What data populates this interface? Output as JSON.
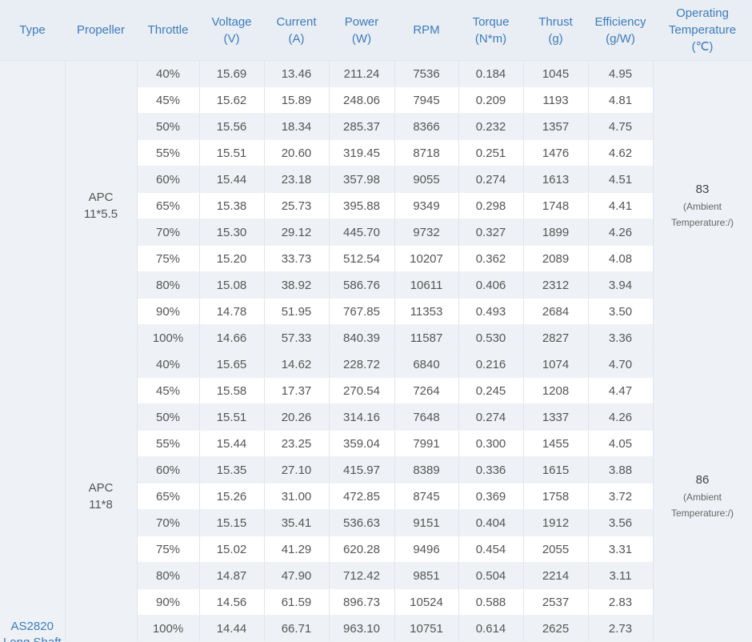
{
  "headers": {
    "type": "Type",
    "propeller": "Propeller",
    "throttle": "Throttle",
    "voltage": [
      "Voltage",
      "(V)"
    ],
    "current": [
      "Current",
      "(A)"
    ],
    "power": [
      "Power",
      "(W)"
    ],
    "rpm": "RPM",
    "torque": [
      "Torque",
      "(N*m)"
    ],
    "thrust": [
      "Thrust",
      "(g)"
    ],
    "efficiency": [
      "Efficiency",
      "(g/W)"
    ],
    "temperature": [
      "Operating",
      "Temperature",
      "(℃)"
    ]
  },
  "type_label": [
    "AS2820",
    "Long Shaft"
  ],
  "groups": [
    {
      "propeller": [
        "APC",
        "11*5.5"
      ],
      "temperature": "83",
      "temperature_note": [
        "(Ambient",
        "Temperature:/)"
      ],
      "rows": [
        [
          "40%",
          "15.69",
          "13.46",
          "211.24",
          "7536",
          "0.184",
          "1045",
          "4.95"
        ],
        [
          "45%",
          "15.62",
          "15.89",
          "248.06",
          "7945",
          "0.209",
          "1193",
          "4.81"
        ],
        [
          "50%",
          "15.56",
          "18.34",
          "285.37",
          "8366",
          "0.232",
          "1357",
          "4.75"
        ],
        [
          "55%",
          "15.51",
          "20.60",
          "319.45",
          "8718",
          "0.251",
          "1476",
          "4.62"
        ],
        [
          "60%",
          "15.44",
          "23.18",
          "357.98",
          "9055",
          "0.274",
          "1613",
          "4.51"
        ],
        [
          "65%",
          "15.38",
          "25.73",
          "395.88",
          "9349",
          "0.298",
          "1748",
          "4.41"
        ],
        [
          "70%",
          "15.30",
          "29.12",
          "445.70",
          "9732",
          "0.327",
          "1899",
          "4.26"
        ],
        [
          "75%",
          "15.20",
          "33.73",
          "512.54",
          "10207",
          "0.362",
          "2089",
          "4.08"
        ],
        [
          "80%",
          "15.08",
          "38.92",
          "586.76",
          "10611",
          "0.406",
          "2312",
          "3.94"
        ],
        [
          "90%",
          "14.78",
          "51.95",
          "767.85",
          "11353",
          "0.493",
          "2684",
          "3.50"
        ],
        [
          "100%",
          "14.66",
          "57.33",
          "840.39",
          "11587",
          "0.530",
          "2827",
          "3.36"
        ]
      ]
    },
    {
      "propeller": [
        "APC",
        "11*8"
      ],
      "temperature": "86",
      "temperature_note": [
        "(Ambient",
        "Temperature:/)"
      ],
      "rows": [
        [
          "40%",
          "15.65",
          "14.62",
          "228.72",
          "6840",
          "0.216",
          "1074",
          "4.70"
        ],
        [
          "45%",
          "15.58",
          "17.37",
          "270.54",
          "7264",
          "0.245",
          "1208",
          "4.47"
        ],
        [
          "50%",
          "15.51",
          "20.26",
          "314.16",
          "7648",
          "0.274",
          "1337",
          "4.26"
        ],
        [
          "55%",
          "15.44",
          "23.25",
          "359.04",
          "7991",
          "0.300",
          "1455",
          "4.05"
        ],
        [
          "60%",
          "15.35",
          "27.10",
          "415.97",
          "8389",
          "0.336",
          "1615",
          "3.88"
        ],
        [
          "65%",
          "15.26",
          "31.00",
          "472.85",
          "8745",
          "0.369",
          "1758",
          "3.72"
        ],
        [
          "70%",
          "15.15",
          "35.41",
          "536.63",
          "9151",
          "0.404",
          "1912",
          "3.56"
        ],
        [
          "75%",
          "15.02",
          "41.29",
          "620.28",
          "9496",
          "0.454",
          "2055",
          "3.31"
        ],
        [
          "80%",
          "14.87",
          "47.90",
          "712.42",
          "9851",
          "0.504",
          "2214",
          "3.11"
        ],
        [
          "90%",
          "14.56",
          "61.59",
          "896.73",
          "10524",
          "0.588",
          "2537",
          "2.83"
        ],
        [
          "100%",
          "14.44",
          "66.71",
          "963.10",
          "10751",
          "0.614",
          "2625",
          "2.73"
        ]
      ]
    }
  ]
}
